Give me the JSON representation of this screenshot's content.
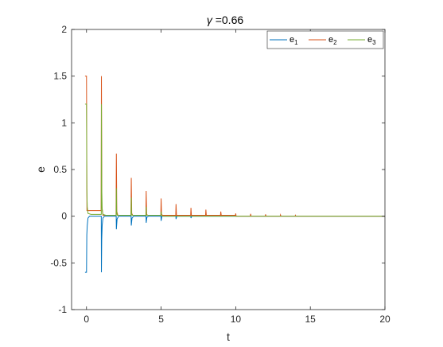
{
  "chart_data": {
    "type": "line",
    "title_symbol": "γ",
    "title_value": " =0.66",
    "xlabel": "t",
    "ylabel": "e",
    "xlim": [
      -1,
      20
    ],
    "ylim": [
      -1,
      2
    ],
    "xticks": [
      0,
      5,
      10,
      15,
      20
    ],
    "xtick_labels": [
      "0",
      "5",
      "10",
      "15",
      "20"
    ],
    "yticks": [
      -1,
      -0.5,
      0,
      0.5,
      1,
      1.5,
      2
    ],
    "ytick_labels": [
      "-1",
      "-0.5",
      "0",
      "0.5",
      "1",
      "1.5",
      "2"
    ],
    "grid": false,
    "legend_position": "top-right",
    "series": [
      {
        "name": "e1",
        "label_base": "e",
        "label_sub": "1",
        "color": "#0072bd",
        "x": [
          -0.1,
          0.0,
          0.02,
          0.05,
          0.1,
          0.2,
          0.5,
          0.99,
          1.0,
          1.02,
          1.05,
          1.1,
          1.2,
          1.5,
          1.99,
          2.0,
          2.05,
          2.15,
          2.99,
          3.0,
          3.05,
          3.15,
          3.99,
          4.0,
          4.05,
          4.15,
          4.99,
          5.0,
          5.05,
          5.15,
          5.99,
          6.0,
          6.05,
          6.15,
          6.99,
          7.0,
          7.05,
          7.15,
          20.0
        ],
        "y": [
          -0.6,
          -0.6,
          -0.2,
          -0.1,
          -0.02,
          0.0,
          0.0,
          0.0,
          -0.6,
          -0.25,
          -0.1,
          -0.02,
          0.0,
          0.0,
          0.0,
          -0.14,
          -0.03,
          0.0,
          0.0,
          -0.1,
          -0.02,
          0.0,
          0.0,
          -0.07,
          -0.01,
          0.0,
          0.0,
          -0.05,
          0.0,
          0.0,
          0.0,
          -0.03,
          0.0,
          0.0,
          0.0,
          -0.02,
          0.0,
          0.0,
          0.0
        ]
      },
      {
        "name": "e2",
        "label_base": "e",
        "label_sub": "2",
        "color": "#d95319",
        "x": [
          -0.1,
          0.0,
          0.03,
          0.98,
          1.0,
          1.03,
          1.1,
          1.98,
          2.0,
          2.03,
          2.1,
          2.98,
          3.0,
          3.03,
          3.1,
          3.98,
          4.0,
          4.03,
          4.1,
          4.98,
          5.0,
          5.03,
          5.1,
          5.98,
          6.0,
          6.03,
          6.1,
          6.98,
          7.0,
          7.03,
          7.1,
          7.98,
          8.0,
          8.03,
          8.1,
          8.98,
          9.0,
          9.03,
          9.1,
          9.98,
          10.0,
          10.03,
          10.1,
          10.98,
          11.0,
          11.03,
          11.1,
          11.98,
          12.0,
          12.03,
          12.1,
          12.98,
          13.0,
          13.03,
          13.1,
          13.98,
          14.0,
          14.03,
          14.1,
          20.0
        ],
        "y": [
          1.5,
          1.5,
          0.06,
          0.06,
          1.5,
          0.1,
          0.01,
          0.01,
          0.67,
          0.05,
          0.01,
          0.01,
          0.41,
          0.03,
          0.01,
          0.01,
          0.27,
          0.02,
          0.01,
          0.01,
          0.19,
          0.02,
          0.01,
          0.01,
          0.13,
          0.01,
          0.01,
          0.01,
          0.09,
          0.01,
          0.01,
          0.01,
          0.07,
          0.01,
          0.01,
          0.01,
          0.05,
          0.01,
          0.01,
          0.01,
          0.03,
          0.0,
          0.0,
          0.0,
          0.025,
          0.0,
          0.0,
          0.0,
          0.02,
          0.0,
          0.0,
          0.0,
          0.015,
          0.0,
          0.0,
          0.0,
          0.01,
          0.0,
          0.0,
          0.0
        ]
      },
      {
        "name": "e3",
        "label_base": "e",
        "label_sub": "3",
        "color": "#77ac30",
        "x": [
          -0.1,
          0.0,
          0.02,
          0.05,
          0.1,
          0.3,
          0.99,
          1.0,
          1.02,
          1.05,
          1.1,
          1.3,
          1.99,
          2.0,
          2.02,
          2.06,
          2.99,
          3.0,
          3.02,
          3.06,
          3.99,
          4.0,
          4.02,
          4.06,
          4.99,
          5.0,
          5.02,
          5.06,
          20.0
        ],
        "y": [
          1.2,
          1.2,
          0.3,
          0.1,
          0.03,
          0.02,
          0.02,
          1.2,
          0.3,
          0.08,
          0.02,
          0.01,
          0.01,
          0.3,
          0.05,
          0.01,
          0.01,
          0.2,
          0.03,
          0.01,
          0.01,
          0.1,
          0.01,
          0.01,
          0.01,
          0.05,
          0.01,
          0.0,
          0.0
        ]
      }
    ]
  }
}
